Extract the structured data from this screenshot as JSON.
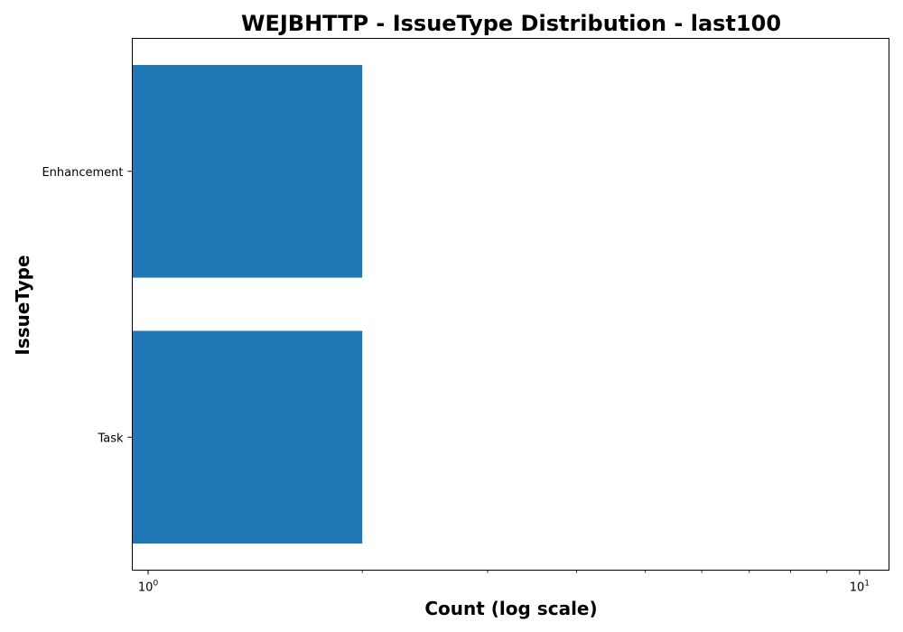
{
  "chart_data": {
    "type": "bar",
    "orientation": "horizontal",
    "title": "WEJBHTTP - IssueType Distribution - last100",
    "xlabel": "Count (log scale)",
    "ylabel": "IssueType",
    "x_scale": "log",
    "xlim": [
      0.95,
      11
    ],
    "x_ticks": [
      {
        "value": 1,
        "base": "10",
        "exp": "0"
      },
      {
        "value": 10,
        "base": "10",
        "exp": "1"
      }
    ],
    "categories": [
      "Enhancement",
      "Task"
    ],
    "values": [
      2,
      2
    ],
    "bar_color": "#1f77b4",
    "grid": false,
    "legend": "none"
  }
}
